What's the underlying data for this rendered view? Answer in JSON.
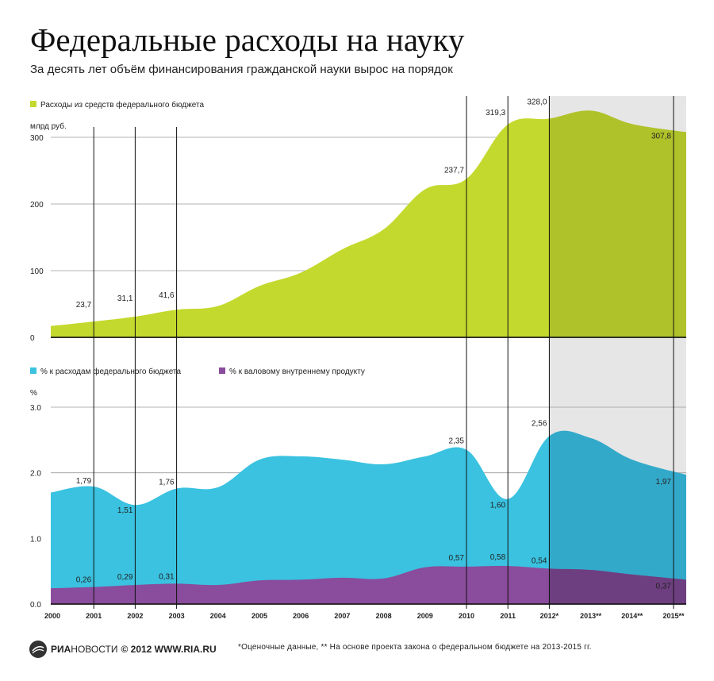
{
  "header": {
    "title": "Федеральные расходы на науку",
    "subtitle": "За десять лет объём финансирования гражданской науки вырос на порядок"
  },
  "footer": {
    "logo_primary": "РИА",
    "logo_secondary": "НОВОСТИ",
    "copyright": "© 2012 WWW.RIA.RU",
    "note": "*Оценочные данные, ** На основе проекта закона о федеральном бюджете на 2013-2015 гг."
  },
  "colors": {
    "budget_area": "#c4d92e",
    "budget_area_forecast": "#b0c22a",
    "pct_budget_area": "#3ac2e0",
    "pct_budget_area_forecast": "#33a9ca",
    "pct_gdp_area": "#8a4c9c",
    "pct_gdp_area_forecast": "#6e3f80",
    "forecast_band": "#e6e6e6"
  },
  "chart_data": [
    {
      "type": "area",
      "legend": [
        {
          "label": "Расходы из средств федерального бюджета",
          "color": "#c4d92e"
        }
      ],
      "ylabel": "млрд руб.",
      "ylim": [
        0,
        300
      ],
      "y_ticks": [
        "0",
        "100",
        "200",
        "300"
      ],
      "x": [
        2000,
        2001,
        2002,
        2003,
        2004,
        2005,
        2006,
        2007,
        2008,
        2009,
        2010,
        2011,
        2012,
        2013,
        2014,
        2015
      ],
      "values": [
        17,
        23.7,
        31.1,
        41.6,
        47,
        77,
        97,
        132,
        162,
        222,
        237.7,
        319.3,
        328.0,
        340,
        320,
        307.8
      ],
      "data_labels": [
        {
          "index": 1,
          "text": "23,7"
        },
        {
          "index": 2,
          "text": "31,1"
        },
        {
          "index": 3,
          "text": "41,6"
        },
        {
          "index": 10,
          "text": "237,7"
        },
        {
          "index": 11,
          "text": "319,3"
        },
        {
          "index": 12,
          "text": "328,0"
        },
        {
          "index": 15,
          "text": "307,8"
        }
      ]
    },
    {
      "type": "area",
      "legend": [
        {
          "label": "% к расходам федерального бюджета",
          "color": "#3ac2e0"
        },
        {
          "label": "% к валовому внутреннему продукту",
          "color": "#8a4c9c"
        }
      ],
      "ylabel": "%",
      "ylim": [
        0,
        3
      ],
      "y_ticks": [
        "0.0",
        "1.0",
        "2.0",
        "3.0"
      ],
      "x": [
        2000,
        2001,
        2002,
        2003,
        2004,
        2005,
        2006,
        2007,
        2008,
        2009,
        2010,
        2011,
        2012,
        2013,
        2014,
        2015
      ],
      "series": [
        {
          "values": [
            1.7,
            1.79,
            1.51,
            1.76,
            1.78,
            2.2,
            2.25,
            2.2,
            2.13,
            2.25,
            2.35,
            1.6,
            2.56,
            2.53,
            2.2,
            1.97
          ],
          "data_labels": [
            {
              "index": 1,
              "text": "1,79"
            },
            {
              "index": 2,
              "text": "1,51"
            },
            {
              "index": 3,
              "text": "1,76"
            },
            {
              "index": 10,
              "text": "2,35"
            },
            {
              "index": 11,
              "text": "1,60"
            },
            {
              "index": 12,
              "text": "2,56"
            },
            {
              "index": 15,
              "text": "1,97"
            }
          ]
        },
        {
          "values": [
            0.24,
            0.26,
            0.29,
            0.31,
            0.29,
            0.36,
            0.37,
            0.4,
            0.39,
            0.56,
            0.57,
            0.58,
            0.54,
            0.52,
            0.45,
            0.37
          ],
          "data_labels": [
            {
              "index": 1,
              "text": "0,26"
            },
            {
              "index": 2,
              "text": "0,29"
            },
            {
              "index": 3,
              "text": "0,31"
            },
            {
              "index": 10,
              "text": "0,57"
            },
            {
              "index": 11,
              "text": "0,58"
            },
            {
              "index": 12,
              "text": "0,54"
            },
            {
              "index": 15,
              "text": "0,37"
            }
          ]
        }
      ]
    }
  ],
  "x_tick_labels": [
    "2000",
    "2001",
    "2002",
    "2003",
    "2004",
    "2005",
    "2006",
    "2007",
    "2008",
    "2009",
    "2010",
    "2011",
    "2012*",
    "2013**",
    "2014**",
    "2015**"
  ],
  "highlighted_years_index": [
    1,
    2,
    3,
    10,
    11,
    12,
    15
  ],
  "forecast_start_index": 12
}
